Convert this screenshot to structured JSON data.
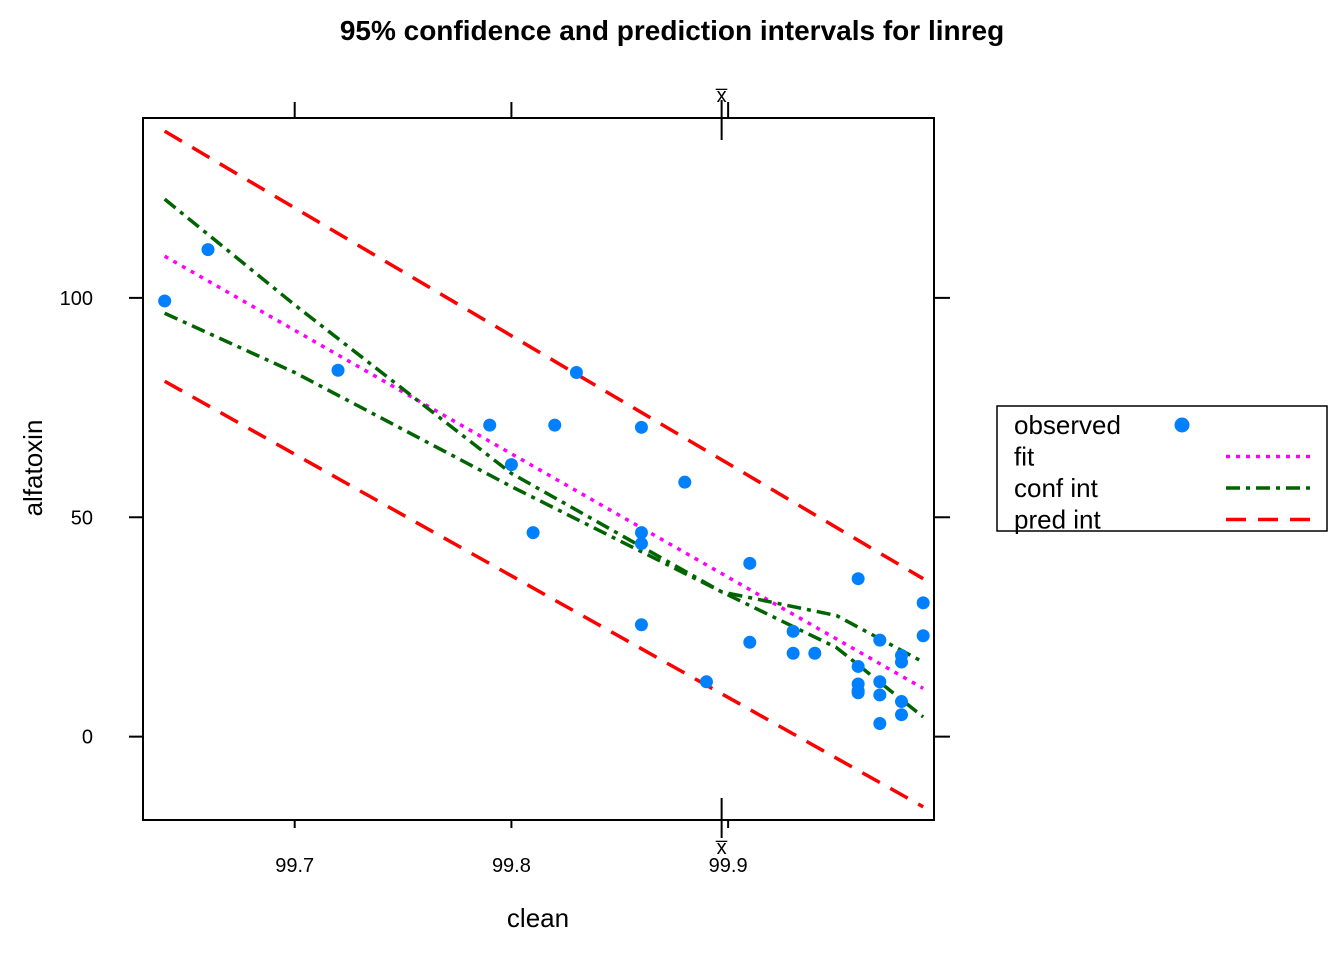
{
  "chart_data": {
    "type": "scatter",
    "title": "95% confidence and prediction intervals for linreg",
    "xlabel": "clean",
    "ylabel": "alfatoxin",
    "xlim": [
      99.63,
      99.995
    ],
    "ylim": [
      -19,
      141
    ],
    "x_ticks": [
      99.7,
      99.8,
      99.9
    ],
    "x_tick_labels": [
      "99.7",
      "99.8",
      "99.9"
    ],
    "y_ticks": [
      0,
      50,
      100
    ],
    "y_tick_labels": [
      "0",
      "50",
      "100"
    ],
    "xbar": 99.897,
    "xbar_label": "x̅",
    "grid": false,
    "legend_position": "right",
    "legend": [
      {
        "label": "observed",
        "style": "point",
        "color": "#0080ff"
      },
      {
        "label": "fit",
        "style": "dotted",
        "color": "#ff00ff"
      },
      {
        "label": "conf int",
        "style": "dashdot",
        "color": "#006400"
      },
      {
        "label": "pred int",
        "style": "dashed",
        "color": "#ff0000"
      }
    ],
    "observed": {
      "x": [
        99.64,
        99.66,
        99.72,
        99.79,
        99.8,
        99.81,
        99.82,
        99.83,
        99.86,
        99.86,
        99.86,
        99.86,
        99.88,
        99.89,
        99.91,
        99.91,
        99.93,
        99.93,
        99.94,
        99.96,
        99.96,
        99.96,
        99.96,
        99.96,
        99.97,
        99.97,
        99.97,
        99.97,
        99.98,
        99.98,
        99.98,
        99.98,
        99.99,
        99.99
      ],
      "y": [
        99.3,
        111.0,
        83.5,
        71.0,
        62.0,
        46.5,
        71.0,
        83.0,
        70.5,
        46.5,
        44.0,
        25.5,
        58.0,
        12.5,
        39.5,
        21.5,
        24.0,
        19.0,
        19.0,
        36.0,
        16.0,
        12.0,
        10.0,
        10.5,
        22.0,
        12.5,
        9.5,
        3.0,
        18.5,
        17.0,
        8.0,
        5.0,
        30.5,
        23.0
      ]
    },
    "series": [
      {
        "label": "fit",
        "x": [
          99.64,
          99.99
        ],
        "y": [
          109.5,
          11.0
        ]
      },
      {
        "label": "conf int",
        "x": [
          99.64,
          99.7,
          99.8,
          99.897,
          99.95,
          99.99
        ],
        "y": [
          122.5,
          98.4,
          60.0,
          33.0,
          20.3,
          4.5
        ]
      },
      {
        "label": "conf int",
        "x": [
          99.64,
          99.7,
          99.8,
          99.897,
          99.95,
          99.99
        ],
        "y": [
          96.5,
          83.0,
          57.0,
          33.0,
          27.6,
          17.0
        ]
      },
      {
        "label": "pred int",
        "x": [
          99.64,
          99.99
        ],
        "y": [
          138.0,
          36.0
        ]
      },
      {
        "label": "pred int",
        "x": [
          99.64,
          99.99
        ],
        "y": [
          81.0,
          -16.0
        ]
      }
    ]
  }
}
